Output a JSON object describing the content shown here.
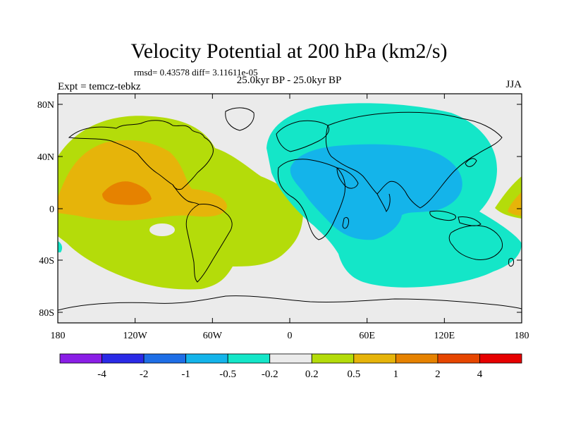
{
  "title": "Velocity Potential at 200 hPa (km2/s)",
  "stats": "rmsd= 0.43578 diff= 3.11611e-05",
  "expt": "Expt = temcz-tebkz",
  "period": "25.0kyr BP - 25.0kyr BP",
  "season": "JJA",
  "lat_ticks": [
    "80N",
    "40N",
    "0",
    "40S",
    "80S"
  ],
  "lon_ticks": [
    "180",
    "120W",
    "60W",
    "0",
    "60E",
    "120E",
    "180"
  ],
  "colorbar": {
    "colors": [
      "#8a1ee6",
      "#2a2ae6",
      "#1e6ee6",
      "#14b4ea",
      "#14e6c8",
      "#ebebeb",
      "#b4dc0a",
      "#e6b40a",
      "#e68200",
      "#e64600",
      "#e60000"
    ],
    "labels": [
      "-4",
      "-2",
      "-1",
      "-0.5",
      "-0.2",
      "0.2",
      "0.5",
      "1",
      "2",
      "4"
    ]
  },
  "colors": {
    "ocean_background": "#ebebeb",
    "pos_weak": "#b4dc0a",
    "pos_mid": "#e6b40a",
    "pos_strong": "#e68200",
    "neg_weak": "#14e6c8",
    "neg_mid": "#14b4ea"
  }
}
